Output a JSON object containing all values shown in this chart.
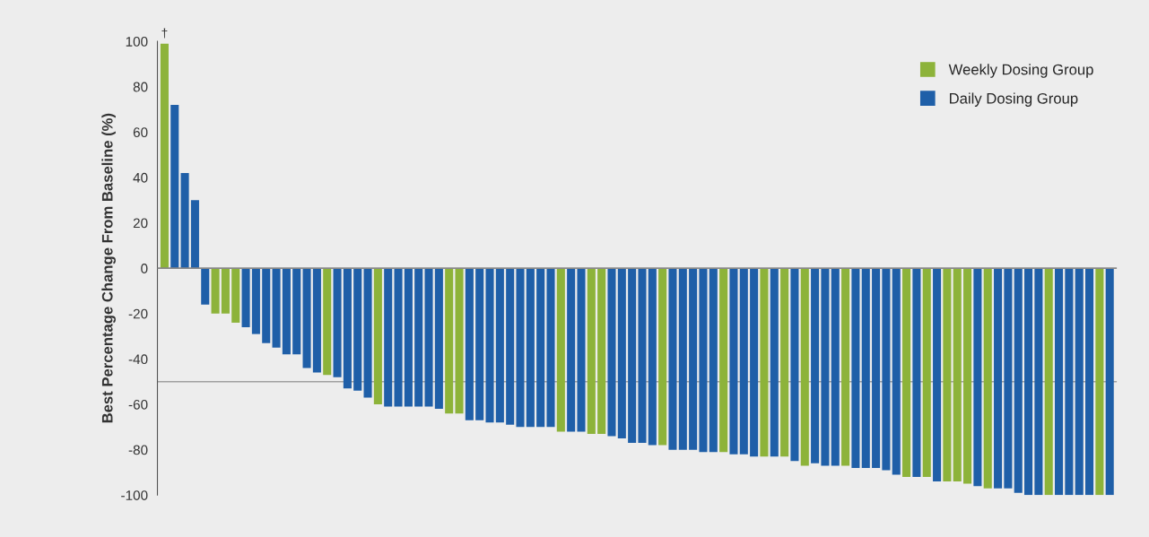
{
  "chart_data": {
    "type": "bar",
    "ylabel": "Best Percentage Change From Baseline (%)",
    "categories": [
      null,
      null,
      null,
      null,
      null,
      null,
      null,
      null,
      null,
      null,
      null,
      null,
      null,
      null,
      null,
      null,
      null,
      null,
      null,
      null,
      null,
      null,
      null,
      null,
      null,
      null,
      null,
      null,
      null,
      null,
      null,
      null,
      null,
      null,
      null,
      null,
      null,
      null,
      null,
      null,
      null,
      null,
      null,
      null,
      null,
      null,
      null,
      null,
      null,
      null,
      null,
      null,
      null,
      null,
      null,
      null,
      null,
      null,
      null,
      null,
      null,
      null,
      null,
      null,
      null,
      null,
      null,
      null,
      null,
      null,
      null,
      null,
      null,
      null,
      null,
      null,
      null,
      null,
      null,
      null,
      null,
      null,
      null,
      null,
      null,
      null,
      null,
      null,
      null,
      null,
      null,
      null,
      null,
      null
    ],
    "series": [
      {
        "name": "Weekly Dosing Group",
        "color": "#8db33a",
        "values": [
          99,
          null,
          null,
          null,
          null,
          -20,
          -20,
          -24,
          null,
          null,
          null,
          null,
          null,
          null,
          null,
          null,
          -47,
          null,
          null,
          null,
          null,
          -60,
          null,
          null,
          null,
          null,
          null,
          null,
          -64,
          -64,
          null,
          null,
          null,
          null,
          null,
          null,
          null,
          null,
          null,
          -72,
          null,
          null,
          -73,
          -73,
          null,
          null,
          null,
          null,
          null,
          -78,
          null,
          null,
          null,
          null,
          null,
          -81,
          null,
          null,
          null,
          -83,
          null,
          -83,
          null,
          -87,
          null,
          null,
          null,
          -87,
          null,
          null,
          null,
          null,
          null,
          -92,
          null,
          -92,
          null,
          -94,
          -94,
          -95,
          null,
          -97,
          null,
          null,
          null,
          null,
          null,
          -100,
          null,
          null,
          null,
          null,
          -100,
          null
        ],
        "value_labels": [
          "†",
          null,
          null,
          null,
          null,
          null,
          null,
          null,
          null,
          null,
          null,
          null,
          null,
          null,
          null,
          null,
          null,
          null,
          null,
          null,
          null,
          null,
          null,
          null,
          null,
          null,
          null,
          null,
          null,
          null,
          null,
          null,
          null,
          null,
          null,
          null,
          null,
          null,
          null,
          null,
          null,
          null,
          null,
          null,
          null,
          null,
          null,
          null,
          null,
          null,
          null,
          null,
          null,
          null,
          null,
          null,
          null,
          null,
          null,
          null,
          null,
          null,
          null,
          null,
          null,
          null,
          null,
          null,
          null,
          null,
          null,
          null,
          null,
          null,
          null,
          null,
          null,
          null,
          null,
          null,
          null,
          null,
          null,
          null,
          null,
          null,
          null,
          null,
          null,
          null,
          null,
          null,
          null,
          null
        ]
      },
      {
        "name": "Daily Dosing Group",
        "color": "#1f5fa8",
        "values": [
          null,
          72,
          42,
          30,
          -16,
          null,
          null,
          null,
          -26,
          -29,
          -33,
          -35,
          -38,
          -38,
          -44,
          -46,
          null,
          -48,
          -53,
          -54,
          -57,
          null,
          -61,
          -61,
          -61,
          -61,
          -61,
          -62,
          null,
          null,
          -67,
          -67,
          -68,
          -68,
          -69,
          -70,
          -70,
          -70,
          -70,
          null,
          -72,
          -72,
          null,
          null,
          -74,
          -75,
          -77,
          -77,
          -78,
          null,
          -80,
          -80,
          -80,
          -81,
          -81,
          null,
          -82,
          -82,
          -83,
          null,
          -83,
          null,
          -85,
          null,
          -86,
          -87,
          -87,
          null,
          -88,
          -88,
          -88,
          -89,
          -91,
          null,
          -92,
          null,
          -94,
          null,
          null,
          null,
          -96,
          null,
          -97,
          -97,
          -99,
          -100,
          -100,
          null,
          -100,
          -100,
          -100,
          -100,
          null,
          -100
        ]
      }
    ],
    "ylim": [
      -100,
      100
    ],
    "yticks": [
      -100,
      -80,
      -60,
      -40,
      -20,
      0,
      20,
      40,
      60,
      80,
      100
    ],
    "ref_lines": [
      {
        "axis": "y",
        "value": -50,
        "color": "#a0a0a0"
      }
    ],
    "legend": "top right"
  }
}
